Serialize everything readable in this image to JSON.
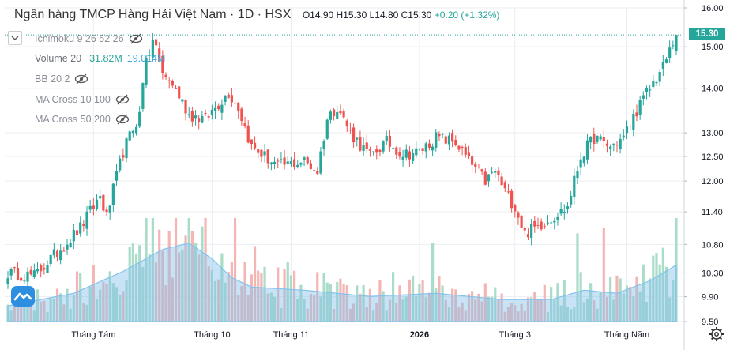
{
  "header": {
    "title": "Ngân hàng TMCP Hàng Hải Việt Nam · 1D · HSX",
    "ohlc": {
      "open": "O14.90",
      "high": "H15.30",
      "low": "L14.80",
      "close": "C15.30",
      "change": "+0.20 (+1.32%)"
    }
  },
  "indicators": [
    {
      "label": "Ichimoku 9 26 52 26",
      "icon": "eye-slash-icon",
      "style": "muted"
    },
    {
      "label": "Volume 20",
      "values": [
        "31.82M",
        "19.014M"
      ],
      "value_colors": [
        "#26a69a",
        "#3ba5e0"
      ],
      "style": "active"
    },
    {
      "label": "BB 20 2",
      "icon": "eye-slash-icon",
      "style": "muted"
    },
    {
      "label": "MA Cross 10 100",
      "icon": "eye-slash-icon",
      "style": "muted"
    },
    {
      "label": "MA Cross 50 200",
      "icon": "eye-slash-icon",
      "style": "muted"
    }
  ],
  "price_tag": "15.30",
  "colors": {
    "up": "#26a69a",
    "down": "#ef5350",
    "up_volume": "#a9dcc9",
    "down_volume": "#f4b6b5",
    "volume_ma": "#84c2ec",
    "grid": "#ebedf1",
    "axis_text": "#131722"
  },
  "chart_data": {
    "type": "candlestick",
    "title": "Ngân hàng TMCP Hàng Hải Việt Nam · 1D · HSX",
    "ylabel": "",
    "yscale": "log",
    "ylim": [
      9.5,
      16.0
    ],
    "yticks": [
      16.0,
      15.0,
      14.0,
      13.0,
      12.5,
      12.0,
      11.4,
      10.8,
      10.3,
      9.9,
      9.5
    ],
    "ytick_labels": [
      "16.00",
      "15.00",
      "14.00",
      "13.00",
      "12.50",
      "12.00",
      "11.40",
      "10.80",
      "10.30",
      "9.90",
      "9.50"
    ],
    "xtick_labels": [
      "Tháng Tám",
      "Tháng 10",
      "Tháng 11",
      "2026",
      "Tháng 3",
      "Tháng Năm"
    ],
    "grid": true,
    "last": {
      "open": 14.9,
      "high": 15.3,
      "low": 14.8,
      "close": 15.3,
      "change": 0.2,
      "change_pct": 1.32
    },
    "close_path": [
      [
        0,
        10.3
      ],
      [
        8,
        10.25
      ],
      [
        14,
        10.6
      ],
      [
        22,
        11.1
      ],
      [
        28,
        11.7
      ],
      [
        30,
        11.3
      ],
      [
        35,
        12.6
      ],
      [
        40,
        13.4
      ],
      [
        42,
        14.8
      ],
      [
        45,
        15.1
      ],
      [
        47,
        14.3
      ],
      [
        50,
        14.1
      ],
      [
        55,
        13.4
      ],
      [
        60,
        13.3
      ],
      [
        67,
        13.9
      ],
      [
        70,
        13.55
      ],
      [
        74,
        12.7
      ],
      [
        78,
        12.5
      ],
      [
        82,
        12.3
      ],
      [
        90,
        12.4
      ],
      [
        94,
        12.2
      ],
      [
        97,
        13.3
      ],
      [
        100,
        13.6
      ],
      [
        104,
        13.0
      ],
      [
        110,
        12.5
      ],
      [
        115,
        12.8
      ],
      [
        120,
        12.55
      ],
      [
        125,
        12.6
      ],
      [
        130,
        12.9
      ],
      [
        136,
        12.8
      ],
      [
        140,
        12.4
      ],
      [
        145,
        12.0
      ],
      [
        148,
        12.2
      ],
      [
        151,
        11.8
      ],
      [
        154,
        11.5
      ],
      [
        157,
        11.0
      ],
      [
        160,
        11.1
      ],
      [
        164,
        11.25
      ],
      [
        168,
        11.4
      ],
      [
        170,
        11.5
      ],
      [
        174,
        12.5
      ],
      [
        178,
        12.9
      ],
      [
        183,
        12.7
      ],
      [
        187,
        12.9
      ],
      [
        191,
        13.5
      ],
      [
        195,
        14.0
      ],
      [
        199,
        14.5
      ],
      [
        203,
        15.3
      ]
    ],
    "volume_ma_path": [
      [
        0,
        0.05
      ],
      [
        20,
        0.09
      ],
      [
        35,
        0.16
      ],
      [
        47,
        0.23
      ],
      [
        55,
        0.25
      ],
      [
        62,
        0.2
      ],
      [
        68,
        0.14
      ],
      [
        74,
        0.11
      ],
      [
        90,
        0.1
      ],
      [
        110,
        0.08
      ],
      [
        130,
        0.09
      ],
      [
        150,
        0.07
      ],
      [
        165,
        0.07
      ],
      [
        175,
        0.1
      ],
      [
        185,
        0.09
      ],
      [
        195,
        0.13
      ],
      [
        203,
        0.18
      ]
    ]
  }
}
